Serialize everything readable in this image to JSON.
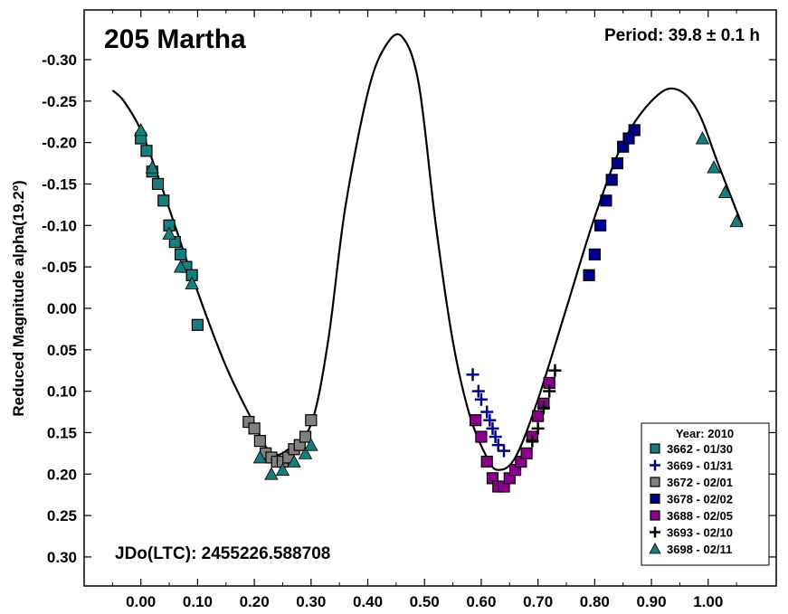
{
  "chart_data": {
    "type": "scatter",
    "title": "205 Martha",
    "annotations": {
      "period": "Period: 39.8 ± 0.1 h",
      "jd": "JDo(LTC): 2455226.588708"
    },
    "xlabel": "",
    "ylabel": "Reduced Magnitude alpha(19.2º)",
    "xlim": [
      -0.1,
      1.12
    ],
    "ylim": [
      -0.36,
      0.335
    ],
    "y_inverted": true,
    "grid": false,
    "legend_position": "bottom-right",
    "legend_title": "Year: 2010",
    "x_ticks": [
      0.0,
      0.1,
      0.2,
      0.3,
      0.4,
      0.5,
      0.6,
      0.7,
      0.8,
      0.9,
      1.0
    ],
    "x_tick_labels": [
      "0.00",
      "0.10",
      "0.20",
      "0.30",
      "0.40",
      "0.50",
      "0.60",
      "0.70",
      "0.80",
      "0.90",
      "1.00"
    ],
    "y_ticks": [
      -0.3,
      -0.25,
      -0.2,
      -0.15,
      -0.1,
      -0.05,
      0.0,
      0.05,
      0.1,
      0.15,
      0.2,
      0.25,
      0.3
    ],
    "y_tick_labels": [
      "-0.30",
      "-0.25",
      "-0.20",
      "-0.15",
      "-0.10",
      "-0.05",
      "0.00",
      "0.05",
      "0.10",
      "0.15",
      "0.20",
      "0.25",
      "0.30"
    ],
    "fit_curve": {
      "x": [
        -0.05,
        -0.03,
        0.0,
        0.03,
        0.06,
        0.1,
        0.15,
        0.2,
        0.23,
        0.26,
        0.3,
        0.33,
        0.36,
        0.4,
        0.43,
        0.46,
        0.49,
        0.52,
        0.55,
        0.58,
        0.61,
        0.63,
        0.66,
        0.7,
        0.75,
        0.8,
        0.85,
        0.9,
        0.94,
        0.98,
        1.02,
        1.06
      ],
      "y": [
        -0.263,
        -0.25,
        -0.215,
        -0.16,
        -0.1,
        -0.02,
        0.07,
        0.14,
        0.175,
        0.17,
        0.14,
        0.04,
        -0.12,
        -0.26,
        -0.315,
        -0.328,
        -0.27,
        -0.1,
        0.04,
        0.13,
        0.18,
        0.195,
        0.18,
        0.11,
        0.0,
        -0.11,
        -0.2,
        -0.25,
        -0.265,
        -0.24,
        -0.17,
        -0.1
      ]
    },
    "series": [
      {
        "name": "3662 - 01/30",
        "marker": "square-open",
        "fill": "#1a7d7d",
        "stroke": "#000000",
        "x": [
          0.0,
          0.01,
          0.02,
          0.03,
          0.04,
          0.05,
          0.06,
          0.07,
          0.08,
          0.09,
          0.1
        ],
        "y": [
          -0.205,
          -0.19,
          -0.165,
          -0.15,
          -0.13,
          -0.1,
          -0.08,
          -0.065,
          -0.05,
          -0.04,
          0.02
        ]
      },
      {
        "name": "3669 - 01/31",
        "marker": "plus",
        "fill": "#00008b",
        "stroke": "#00008b",
        "x": [
          0.585,
          0.595,
          0.6,
          0.61,
          0.615,
          0.62,
          0.625,
          0.63,
          0.64
        ],
        "y": [
          0.08,
          0.1,
          0.11,
          0.125,
          0.135,
          0.145,
          0.155,
          0.165,
          0.172
        ]
      },
      {
        "name": "3672 - 02/01",
        "marker": "square-open",
        "fill": "#808080",
        "stroke": "#000000",
        "x": [
          0.19,
          0.2,
          0.21,
          0.22,
          0.23,
          0.24,
          0.25,
          0.26,
          0.27,
          0.28,
          0.29,
          0.3
        ],
        "y": [
          0.137,
          0.145,
          0.16,
          0.175,
          0.18,
          0.185,
          0.185,
          0.18,
          0.17,
          0.165,
          0.155,
          0.135
        ]
      },
      {
        "name": "3678 - 02/02",
        "marker": "square-open",
        "fill": "#00008b",
        "stroke": "#000000",
        "x": [
          0.79,
          0.8,
          0.81,
          0.82,
          0.83,
          0.84,
          0.85,
          0.86,
          0.87
        ],
        "y": [
          -0.04,
          -0.065,
          -0.1,
          -0.13,
          -0.155,
          -0.175,
          -0.195,
          -0.205,
          -0.215
        ]
      },
      {
        "name": "3688 - 02/05",
        "marker": "square-open",
        "fill": "#8b008b",
        "stroke": "#000000",
        "x": [
          0.59,
          0.6,
          0.61,
          0.62,
          0.63,
          0.64,
          0.65,
          0.66,
          0.67,
          0.68,
          0.69,
          0.7,
          0.71,
          0.72
        ],
        "y": [
          0.135,
          0.155,
          0.185,
          0.205,
          0.215,
          0.215,
          0.205,
          0.195,
          0.185,
          0.175,
          0.155,
          0.13,
          0.115,
          0.09
        ]
      },
      {
        "name": "3693 - 02/10",
        "marker": "plus",
        "fill": "#000000",
        "stroke": "#000000",
        "x": [
          0.69,
          0.7,
          0.71,
          0.72,
          0.73
        ],
        "y": [
          0.16,
          0.145,
          0.12,
          0.1,
          0.075
        ]
      },
      {
        "name": "3698 - 02/11",
        "marker": "triangle",
        "fill": "#1a7d7d",
        "stroke": "#000000",
        "x": [
          0.0,
          0.02,
          0.05,
          0.07,
          0.09,
          0.21,
          0.23,
          0.25,
          0.27,
          0.29,
          0.3,
          0.99,
          1.01,
          1.03,
          1.05
        ],
        "y": [
          -0.215,
          -0.17,
          -0.09,
          -0.05,
          -0.03,
          0.18,
          0.2,
          0.195,
          0.185,
          0.175,
          0.165,
          -0.205,
          -0.17,
          -0.14,
          -0.105
        ]
      }
    ]
  }
}
